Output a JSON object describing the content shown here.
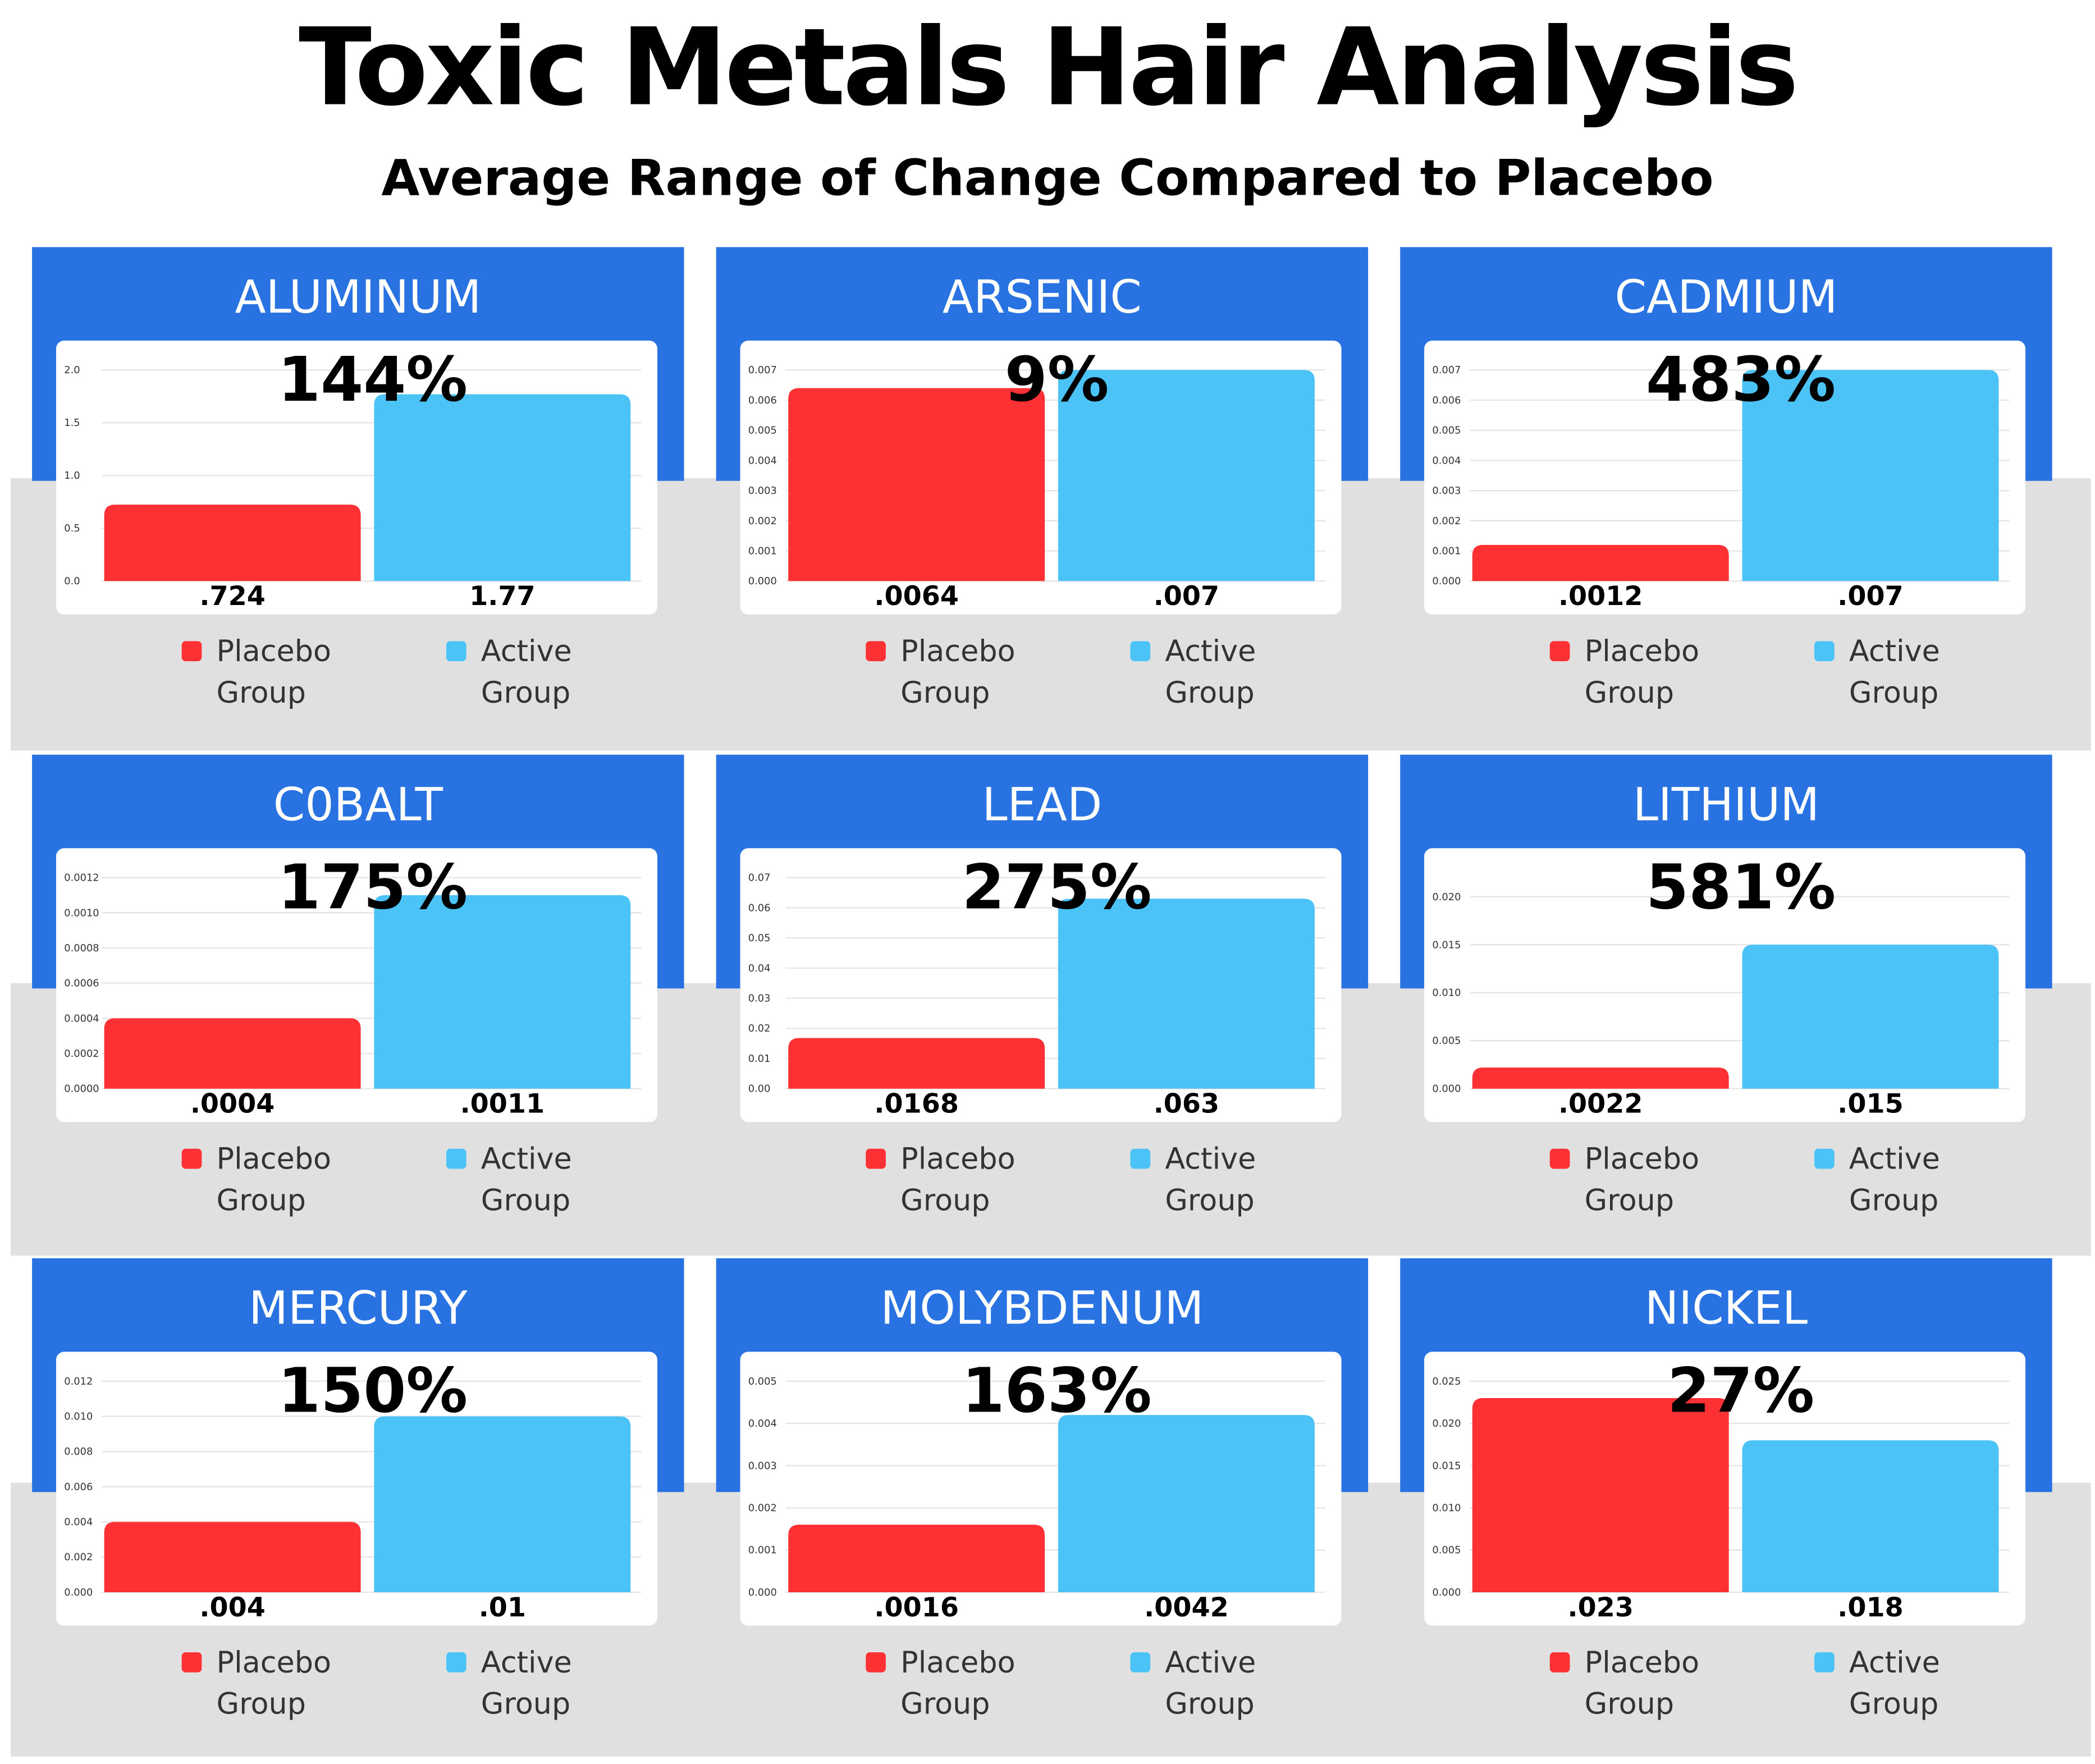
{
  "title": "Toxic Metals Hair Analysis",
  "subtitle": "Average Range of Change Compared to Placebo",
  "chart_data": [
    {
      "type": "bar",
      "title": "ALUMINUM",
      "annotation": "144%",
      "categories": [
        "Placebo Group",
        "Active Group"
      ],
      "colors": [
        "#fd3134",
        "#4bc3f7"
      ],
      "values": [
        0.724,
        1.77
      ],
      "value_labels": [
        ".724",
        "1.77"
      ],
      "ylim": [
        0,
        2.0
      ],
      "yticks": [
        {
          "value": 0,
          "label": "0.0"
        },
        0.5,
        {
          "value": 1,
          "label": "1.0"
        },
        1.5,
        {
          "value": 2,
          "label": "2.0"
        }
      ],
      "grid": true
    },
    {
      "type": "bar",
      "title": "ARSENIC",
      "annotation": "9%",
      "categories": [
        "Placebo Group",
        "Active Group"
      ],
      "colors": [
        "#fd3134",
        "#4bc3f7"
      ],
      "values": [
        0.0064,
        0.007
      ],
      "value_labels": [
        ".0064",
        ".007"
      ],
      "ylim": [
        0,
        0.007
      ],
      "yticks": [
        {
          "value": 0,
          "label": "0.000"
        },
        0.001,
        0.002,
        0.003,
        0.004,
        0.005,
        0.006,
        0.007
      ],
      "grid": true
    },
    {
      "type": "bar",
      "title": "CADMIUM",
      "annotation": "483%",
      "categories": [
        "Placebo Group",
        "Active Group"
      ],
      "colors": [
        "#fd3134",
        "#4bc3f7"
      ],
      "values": [
        0.0012,
        0.007
      ],
      "value_labels": [
        ".0012",
        ".007"
      ],
      "ylim": [
        0,
        0.007
      ],
      "yticks": [
        {
          "value": 0,
          "label": "0.000"
        },
        0.001,
        0.002,
        0.003,
        0.004,
        0.005,
        0.006,
        0.007
      ],
      "grid": true
    },
    {
      "type": "bar",
      "title": "C0BALT",
      "annotation": "175%",
      "categories": [
        "Placebo Group",
        "Active Group"
      ],
      "colors": [
        "#fd3134",
        "#4bc3f7"
      ],
      "values": [
        0.0004,
        0.0011
      ],
      "value_labels": [
        ".0004",
        ".0011"
      ],
      "ylim": [
        0,
        0.0012
      ],
      "yticks": [
        {
          "value": 0,
          "label": "0.0000"
        },
        0.0002,
        0.0004,
        0.0006,
        0.0008,
        {
          "value": 0.001,
          "label": "0.0010"
        },
        0.0012
      ],
      "grid": true
    },
    {
      "type": "bar",
      "title": "LEAD",
      "annotation": "275%",
      "categories": [
        "Placebo Group",
        "Active Group"
      ],
      "colors": [
        "#fd3134",
        "#4bc3f7"
      ],
      "values": [
        0.0168,
        0.063
      ],
      "value_labels": [
        ".0168",
        ".063"
      ],
      "ylim": [
        0,
        0.07
      ],
      "yticks": [
        {
          "value": 0,
          "label": "0.00"
        },
        0.01,
        0.02,
        0.03,
        0.04,
        0.05,
        0.06,
        0.07
      ],
      "grid": true
    },
    {
      "type": "bar",
      "title": "LITHIUM",
      "annotation": "581%",
      "categories": [
        "Placebo Group",
        "Active Group"
      ],
      "colors": [
        "#fd3134",
        "#4bc3f7"
      ],
      "values": [
        0.0022,
        0.015
      ],
      "value_labels": [
        ".0022",
        ".015"
      ],
      "ylim": [
        0,
        0.022
      ],
      "yticks": [
        {
          "value": 0,
          "label": "0.000"
        },
        0.005,
        {
          "value": 0.01,
          "label": "0.010"
        },
        0.015,
        {
          "value": 0.02,
          "label": "0.020"
        }
      ],
      "grid": true
    },
    {
      "type": "bar",
      "title": "MERCURY",
      "annotation": "150%",
      "categories": [
        "Placebo Group",
        "Active Group"
      ],
      "colors": [
        "#fd3134",
        "#4bc3f7"
      ],
      "values": [
        0.004,
        0.01
      ],
      "value_labels": [
        ".004",
        ".01"
      ],
      "ylim": [
        0,
        0.012
      ],
      "yticks": [
        {
          "value": 0,
          "label": "0.000"
        },
        0.002,
        0.004,
        0.006,
        0.008,
        {
          "value": 0.01,
          "label": "0.010"
        },
        0.012
      ],
      "grid": true
    },
    {
      "type": "bar",
      "title": "MOLYBDENUM",
      "annotation": "163%",
      "categories": [
        "Placebo Group",
        "Active Group"
      ],
      "colors": [
        "#fd3134",
        "#4bc3f7"
      ],
      "values": [
        0.0016,
        0.0042
      ],
      "value_labels": [
        ".0016",
        ".0042"
      ],
      "ylim": [
        0,
        0.005
      ],
      "yticks": [
        {
          "value": 0,
          "label": "0.000"
        },
        0.001,
        0.002,
        0.003,
        0.004,
        0.005
      ],
      "grid": true
    },
    {
      "type": "bar",
      "title": "NICKEL",
      "annotation": "27%",
      "categories": [
        "Placebo Group",
        "Active Group"
      ],
      "colors": [
        "#fd3134",
        "#4bc3f7"
      ],
      "values": [
        0.023,
        0.018
      ],
      "value_labels": [
        ".023",
        ".018"
      ],
      "ylim": [
        0,
        0.025
      ],
      "yticks": [
        {
          "value": 0,
          "label": "0.000"
        },
        0.005,
        {
          "value": 0.01,
          "label": "0.010"
        },
        0.015,
        {
          "value": 0.02,
          "label": "0.020"
        },
        0.025
      ],
      "grid": true
    }
  ]
}
